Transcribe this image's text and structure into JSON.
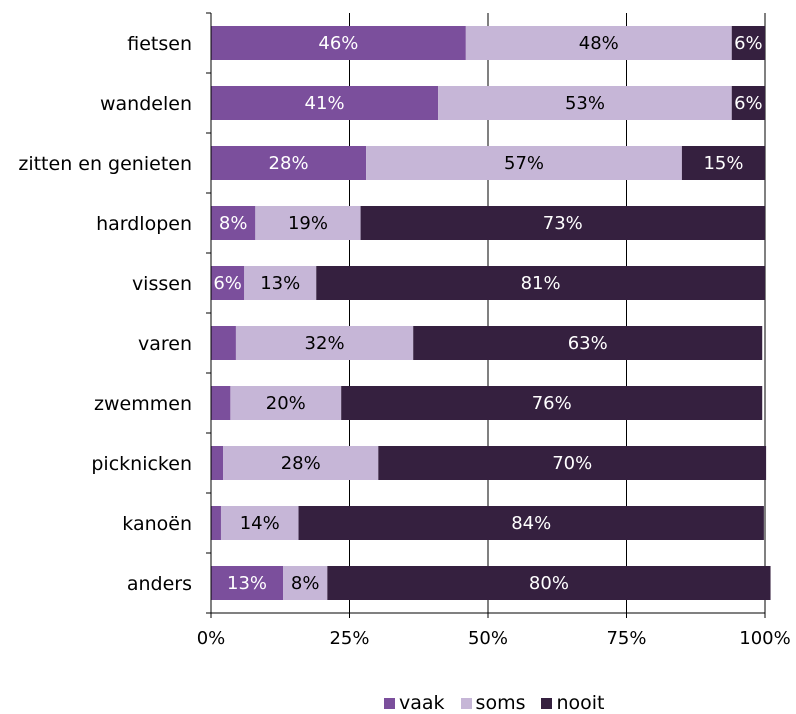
{
  "chart_data": {
    "type": "bar",
    "orientation": "horizontal",
    "stacked": true,
    "categories": [
      "fietsen",
      "wandelen",
      "zitten en genieten",
      "hardlopen",
      "vissen",
      "varen",
      "zwemmen",
      "picknicken",
      "kanoën",
      "anders"
    ],
    "series": [
      {
        "name": "vaak",
        "color": "#7b4f9c",
        "values": [
          46,
          41,
          28,
          8,
          6,
          4.5,
          3.5,
          2.2,
          1.8,
          13
        ],
        "labels": [
          "46%",
          "41%",
          "28%",
          "8%",
          "6%",
          "",
          "",
          "",
          "",
          "13%"
        ],
        "label_color": "#ffffff"
      },
      {
        "name": "soms",
        "color": "#c6b6d7",
        "values": [
          48,
          53,
          57,
          19,
          13,
          32,
          20,
          28,
          14,
          8
        ],
        "labels": [
          "48%",
          "53%",
          "57%",
          "19%",
          "13%",
          "32%",
          "20%",
          "28%",
          "14%",
          "8%"
        ],
        "label_color": "#000000"
      },
      {
        "name": "nooit",
        "color": "#35203f",
        "values": [
          6,
          6,
          15,
          73,
          81,
          63,
          76,
          70,
          84,
          80
        ],
        "labels": [
          "6%",
          "6%",
          "15%",
          "73%",
          "81%",
          "63%",
          "76%",
          "70%",
          "84%",
          "80%"
        ],
        "label_color": "#ffffff"
      }
    ],
    "x_ticks": [
      "0%",
      "25%",
      "50%",
      "75%",
      "100%"
    ],
    "xlim": [
      0,
      100
    ],
    "grid": true,
    "legend_position": "bottom"
  }
}
